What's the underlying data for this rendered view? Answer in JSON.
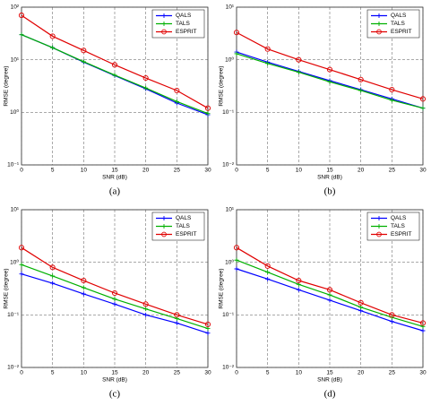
{
  "chart_data": [
    {
      "type": "line",
      "caption": "(a)",
      "xlabel": "SNR (dB)",
      "ylabel": "RMSE (degree)",
      "x": [
        0,
        5,
        10,
        15,
        20,
        25,
        30
      ],
      "xlim": [
        0,
        30
      ],
      "xticks": [
        0,
        5,
        10,
        15,
        20,
        25,
        30
      ],
      "ylim": [
        0.1,
        100
      ],
      "yticks": [
        {
          "value": 0.1,
          "label": "10⁻¹"
        },
        {
          "value": 1,
          "label": "10⁰"
        },
        {
          "value": 10,
          "label": "10¹"
        },
        {
          "value": 100,
          "label": "10²"
        }
      ],
      "ylog": true,
      "grid": true,
      "legend": "upper right",
      "series": [
        {
          "name": "QALS",
          "color": "#0000ff",
          "marker": "+",
          "values": [
            30,
            17,
            9,
            5,
            2.8,
            1.5,
            0.9
          ]
        },
        {
          "name": "TALS",
          "color": "#00b000",
          "marker": "+",
          "values": [
            30,
            17,
            9.2,
            5.1,
            2.9,
            1.6,
            0.95
          ]
        },
        {
          "name": "ESPRIT",
          "color": "#e00000",
          "marker": "o",
          "values": [
            70,
            28,
            15,
            8,
            4.5,
            2.6,
            1.2
          ]
        }
      ]
    },
    {
      "type": "line",
      "caption": "(b)",
      "xlabel": "SNR (dB)",
      "ylabel": "RMSE (degree)",
      "x": [
        0,
        5,
        10,
        15,
        20,
        25,
        30
      ],
      "xlim": [
        0,
        30
      ],
      "xticks": [
        0,
        5,
        10,
        15,
        20,
        25,
        30
      ],
      "ylim": [
        0.01,
        10
      ],
      "yticks": [
        {
          "value": 0.01,
          "label": "10⁻²"
        },
        {
          "value": 0.1,
          "label": "10⁻¹"
        },
        {
          "value": 1,
          "label": "10⁰"
        },
        {
          "value": 10,
          "label": "10¹"
        }
      ],
      "ylog": true,
      "grid": true,
      "legend": "upper right",
      "series": [
        {
          "name": "QALS",
          "color": "#0000ff",
          "marker": "+",
          "values": [
            1.4,
            0.9,
            0.6,
            0.4,
            0.27,
            0.18,
            0.12
          ]
        },
        {
          "name": "TALS",
          "color": "#00b000",
          "marker": "+",
          "values": [
            1.3,
            0.85,
            0.58,
            0.38,
            0.26,
            0.17,
            0.12
          ]
        },
        {
          "name": "ESPRIT",
          "color": "#e00000",
          "marker": "o",
          "values": [
            3.3,
            1.6,
            1.0,
            0.65,
            0.42,
            0.27,
            0.18
          ]
        }
      ]
    },
    {
      "type": "line",
      "caption": "(c)",
      "xlabel": "SNR (dB)",
      "ylabel": "RMSE (degree)",
      "x": [
        0,
        5,
        10,
        15,
        20,
        25,
        30
      ],
      "xlim": [
        0,
        30
      ],
      "xticks": [
        0,
        5,
        10,
        15,
        20,
        25,
        30
      ],
      "ylim": [
        0.01,
        10
      ],
      "yticks": [
        {
          "value": 0.01,
          "label": "10⁻²"
        },
        {
          "value": 0.1,
          "label": "10⁻¹"
        },
        {
          "value": 1,
          "label": "10⁰"
        },
        {
          "value": 10,
          "label": "10¹"
        }
      ],
      "ylog": true,
      "grid": true,
      "legend": "upper right",
      "series": [
        {
          "name": "QALS",
          "color": "#0000ff",
          "marker": "+",
          "values": [
            0.6,
            0.4,
            0.25,
            0.16,
            0.1,
            0.07,
            0.045
          ]
        },
        {
          "name": "TALS",
          "color": "#00b000",
          "marker": "+",
          "values": [
            0.9,
            0.55,
            0.33,
            0.2,
            0.13,
            0.085,
            0.055
          ]
        },
        {
          "name": "ESPRIT",
          "color": "#e00000",
          "marker": "o",
          "values": [
            1.9,
            0.8,
            0.45,
            0.26,
            0.16,
            0.1,
            0.066
          ]
        }
      ]
    },
    {
      "type": "line",
      "caption": "(d)",
      "xlabel": "SNR (dB)",
      "ylabel": "RMSE (degree)",
      "x": [
        0,
        5,
        10,
        15,
        20,
        25,
        30
      ],
      "xlim": [
        0,
        30
      ],
      "xticks": [
        0,
        5,
        10,
        15,
        20,
        25,
        30
      ],
      "ylim": [
        0.01,
        10
      ],
      "yticks": [
        {
          "value": 0.01,
          "label": "10⁻²"
        },
        {
          "value": 0.1,
          "label": "10⁻¹"
        },
        {
          "value": 1,
          "label": "10⁰"
        },
        {
          "value": 10,
          "label": "10¹"
        }
      ],
      "ylog": true,
      "grid": true,
      "legend": "upper right",
      "series": [
        {
          "name": "QALS",
          "color": "#0000ff",
          "marker": "+",
          "values": [
            0.75,
            0.48,
            0.3,
            0.19,
            0.12,
            0.075,
            0.05
          ]
        },
        {
          "name": "TALS",
          "color": "#00b000",
          "marker": "+",
          "values": [
            1.1,
            0.65,
            0.38,
            0.24,
            0.14,
            0.09,
            0.06
          ]
        },
        {
          "name": "ESPRIT",
          "color": "#e00000",
          "marker": "o",
          "values": [
            1.9,
            0.85,
            0.45,
            0.3,
            0.17,
            0.1,
            0.07
          ]
        }
      ]
    }
  ]
}
